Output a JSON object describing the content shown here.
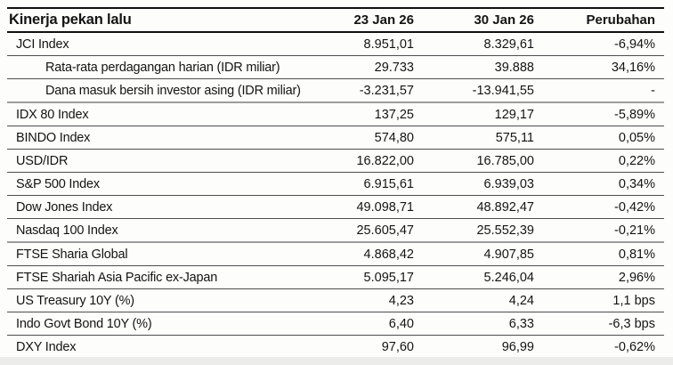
{
  "table": {
    "title": "Kinerja pekan lalu",
    "col_headers": [
      "23 Jan 26",
      "30 Jan 26",
      "Perubahan"
    ],
    "rows": [
      {
        "label": "JCI Index",
        "indent": false,
        "section": false,
        "val_23jan": "8.951,01",
        "val_30jan": "8.329,61",
        "change": "-6,94%"
      },
      {
        "label": "Rata-rata perdagangan harian (IDR miliar)",
        "indent": true,
        "section": false,
        "val_23jan": "29.733",
        "val_30jan": "39.888",
        "change": "34,16%"
      },
      {
        "label": "Dana masuk bersih investor asing (IDR miliar)",
        "indent": true,
        "section": true,
        "val_23jan": "-3.231,57",
        "val_30jan": "-13.941,55",
        "change": "-"
      },
      {
        "label": "IDX 80 Index",
        "indent": false,
        "section": false,
        "val_23jan": "137,25",
        "val_30jan": "129,17",
        "change": "-5,89%"
      },
      {
        "label": "BINDO Index",
        "indent": false,
        "section": false,
        "val_23jan": "574,80",
        "val_30jan": "575,11",
        "change": "0,05%"
      },
      {
        "label": "USD/IDR",
        "indent": false,
        "section": false,
        "val_23jan": "16.822,00",
        "val_30jan": "16.785,00",
        "change": "0,22%"
      },
      {
        "label": "S&P 500 Index",
        "indent": false,
        "section": false,
        "val_23jan": "6.915,61",
        "val_30jan": "6.939,03",
        "change": "0,34%"
      },
      {
        "label": "Dow Jones Index",
        "indent": false,
        "section": false,
        "val_23jan": "49.098,71",
        "val_30jan": "48.892,47",
        "change": "-0,42%"
      },
      {
        "label": "Nasdaq 100 Index",
        "indent": false,
        "section": true,
        "val_23jan": "25.605,47",
        "val_30jan": "25.552,39",
        "change": "-0,21%"
      },
      {
        "label": "FTSE Sharia Global",
        "indent": false,
        "section": false,
        "val_23jan": "4.868,42",
        "val_30jan": "4.907,85",
        "change": "0,81%"
      },
      {
        "label": "FTSE Shariah Asia Pacific ex-Japan",
        "indent": false,
        "section": false,
        "val_23jan": "5.095,17",
        "val_30jan": "5.246,04",
        "change": "2,96%"
      },
      {
        "label": "US Treasury 10Y (%)",
        "indent": false,
        "section": false,
        "val_23jan": "4,23",
        "val_30jan": "4,24",
        "change": "1,1 bps"
      },
      {
        "label": "Indo Govt Bond 10Y (%)",
        "indent": false,
        "section": false,
        "val_23jan": "6,40",
        "val_30jan": "6,33",
        "change": "-6,3 bps"
      },
      {
        "label": "DXY Index",
        "indent": false,
        "section": false,
        "val_23jan": "97,60",
        "val_30jan": "96,99",
        "change": "-0,62%"
      }
    ]
  }
}
